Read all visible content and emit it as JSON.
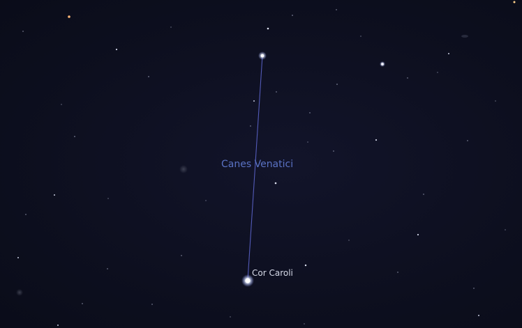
{
  "constellation": {
    "name": "Canes Venatici",
    "line_color": "#5b63c9",
    "label_color": "#5a72c4"
  },
  "stars": {
    "cor_caroli": {
      "label": "Cor Caroli"
    }
  },
  "sky_color": "#0d0f1e"
}
